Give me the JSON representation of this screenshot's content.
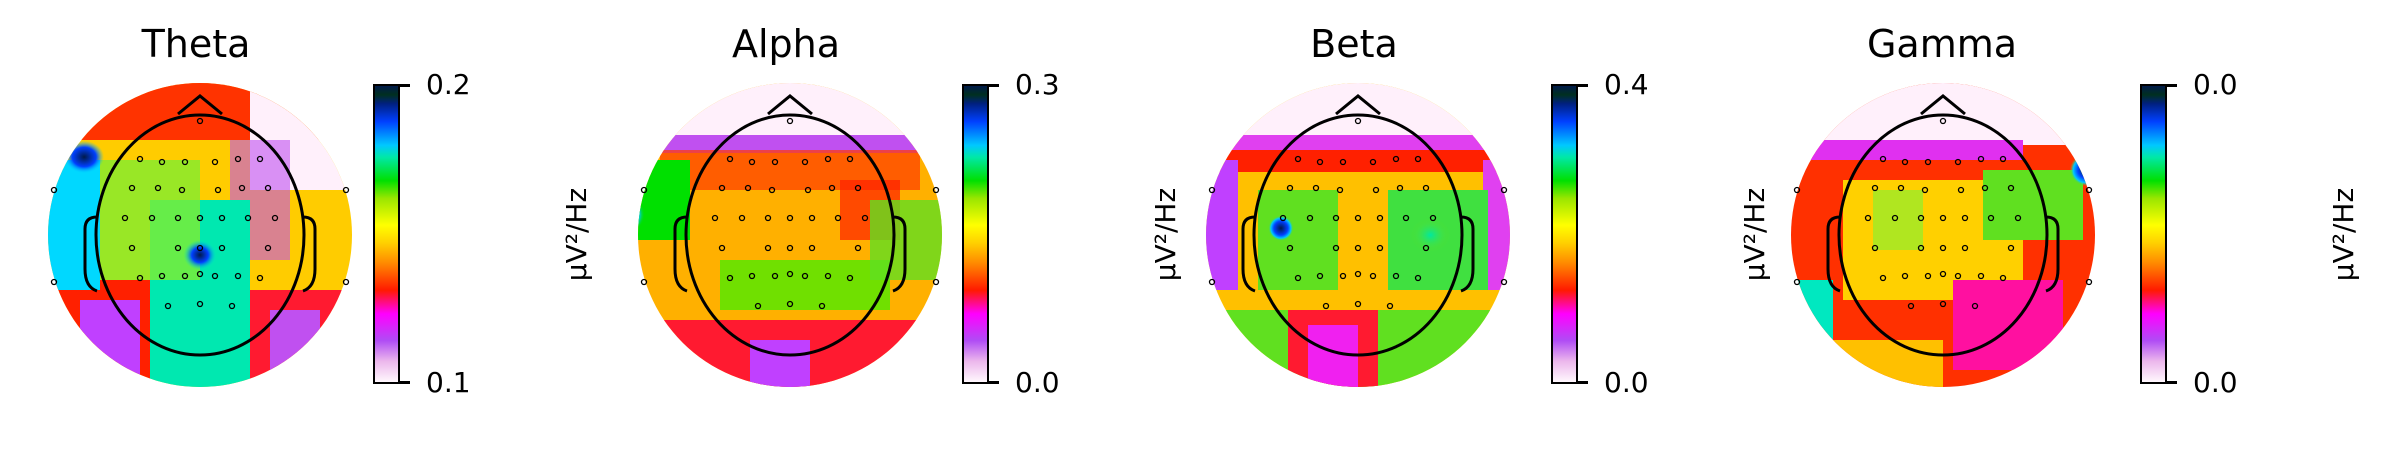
{
  "chart_data": [
    {
      "type": "heatmap",
      "subtype": "eeg-topomap",
      "title": "Theta",
      "colorbar": {
        "label": "µV²/Hz",
        "vmin_label": "0.1",
        "vmax_label": "0.2",
        "range": [
          0.1,
          0.2
        ]
      },
      "colormap": "gist_ncar_r-like (white→purple→magenta→red→orange→yellow→green→cyan→blue→dark navy)",
      "hotspots": [
        "left frontal-temporal (high)",
        "central-parietal Cz/CPz (high)"
      ],
      "n_electrodes": 64
    },
    {
      "type": "heatmap",
      "subtype": "eeg-topomap",
      "title": "Alpha",
      "colorbar": {
        "label": "µV²/Hz",
        "vmin_label": "0.0",
        "vmax_label": "0.3",
        "range": [
          0.0,
          0.3
        ]
      },
      "hotspots": [
        "left temporal (high)",
        "parietal (moderate green)",
        "frontal pole (low)"
      ],
      "n_electrodes": 64
    },
    {
      "type": "heatmap",
      "subtype": "eeg-topomap",
      "title": "Beta",
      "colorbar": {
        "label": "µV²/Hz",
        "vmin_label": "0.0",
        "vmax_label": "0.4",
        "range": [
          0.0,
          0.4
        ]
      },
      "hotspots": [
        "left central C3 (high)",
        "right central (moderate)",
        "frontal pole (low)"
      ],
      "n_electrodes": 64
    },
    {
      "type": "heatmap",
      "subtype": "eeg-topomap",
      "title": "Gamma",
      "colorbar": {
        "label": "µV²/Hz",
        "vmin_label": "0.0",
        "vmax_label": "0.0",
        "range": [
          0.0,
          0.0
        ]
      },
      "hotspots": [
        "right frontal-temporal (high)",
        "frontal pole (low)"
      ],
      "n_electrodes": 64
    }
  ],
  "panels": [
    {
      "title": "Theta",
      "cmax": "0.2",
      "cmin": "0.1",
      "unit": "µV²/Hz"
    },
    {
      "title": "Alpha",
      "cmax": "0.3",
      "cmin": "0.0",
      "unit": "µV²/Hz"
    },
    {
      "title": "Beta",
      "cmax": "0.4",
      "cmin": "0.0",
      "unit": "µV²/Hz"
    },
    {
      "title": "Gamma",
      "cmax": "0.0",
      "cmin": "0.0",
      "unit": "µV²/Hz"
    }
  ]
}
